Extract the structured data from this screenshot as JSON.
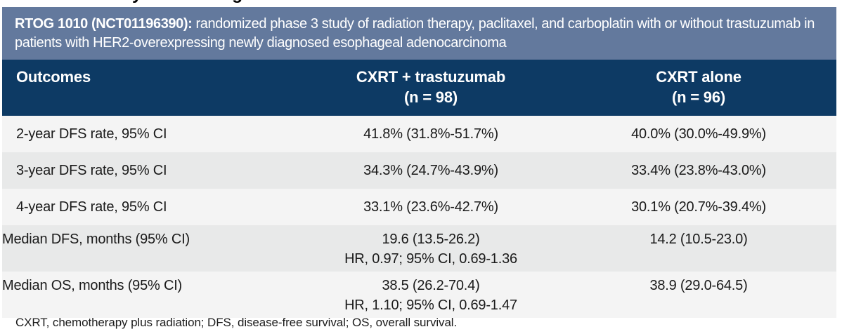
{
  "cropped_heading_remnant": {
    "glyph1": "y",
    "glyph2": "g"
  },
  "banner": {
    "title_bold": "RTOG 1010 (NCT01196390):",
    "title_rest": " randomized phase 3 study of radiation therapy, paclitaxel, and carboplatin with or without trastuzumab in patients with HER2-overexpressing newly diagnosed esophageal adenocarcinoma"
  },
  "table": {
    "columns": {
      "outcomes": "Outcomes",
      "arm1_line1": "CXRT + trastuzumab",
      "arm1_line2": "(n = 98)",
      "arm2_line1": "CXRT alone",
      "arm2_line2": "(n = 96)"
    },
    "rows": [
      {
        "label": "2-year DFS rate, 95% CI",
        "arm1": [
          "41.8% (31.8%-51.7%)"
        ],
        "arm2": [
          "40.0% (30.0%-49.9%)"
        ]
      },
      {
        "label": "3-year DFS rate, 95% CI",
        "arm1": [
          "34.3% (24.7%-43.9%)"
        ],
        "arm2": [
          "33.4% (23.8%-43.0%)"
        ]
      },
      {
        "label": "4-year DFS rate, 95% CI",
        "arm1": [
          "33.1% (23.6%-42.7%)"
        ],
        "arm2": [
          "30.1% (20.7%-39.4%)"
        ]
      },
      {
        "label": "Median DFS, months (95% CI)",
        "arm1": [
          "19.6 (13.5-26.2)",
          "HR, 0.97; 95% CI, 0.69-1.36"
        ],
        "arm2": [
          "14.2 (10.5-23.0)"
        ]
      },
      {
        "label": "Median OS, months (95% CI)",
        "arm1": [
          "38.5 (26.2-70.4)",
          "HR, 1.10; 95% CI, 0.69-1.47"
        ],
        "arm2": [
          "38.9 (29.0-64.5)"
        ]
      }
    ]
  },
  "footnote": "CXRT, chemotherapy plus radiation; DFS, disease-free survival; OS, overall survival.",
  "colors": {
    "banner_bg": "#63799d",
    "header_bg": "#0d3a64",
    "row_light": "#f4f4f4",
    "row_dark": "#e8e9e9",
    "text": "#1a1a1a"
  }
}
